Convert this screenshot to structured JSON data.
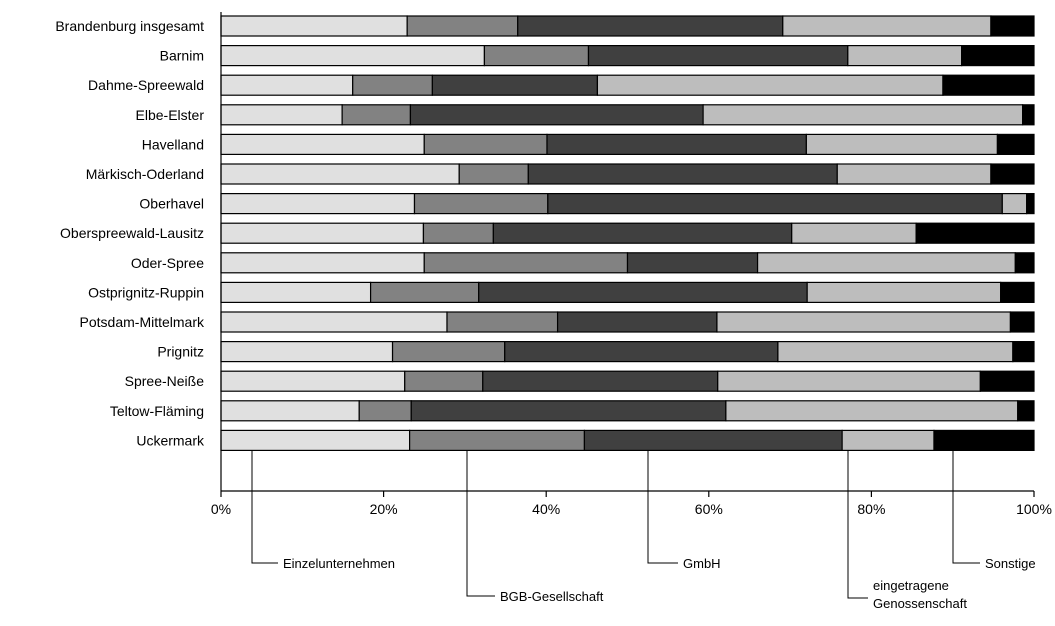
{
  "chart_data": {
    "type": "bar",
    "orientation": "horizontal",
    "stacked": true,
    "percent": true,
    "xlim": [
      0,
      100
    ],
    "xticks": [
      "0%",
      "20%",
      "40%",
      "60%",
      "80%",
      "100%"
    ],
    "grid": false,
    "categories": [
      "Brandenburg insgesamt",
      "Barnim",
      "Dahme-Spreewald",
      "Elbe-Elster",
      "Havelland",
      "Märkisch-Oderland",
      "Oberhavel",
      "Oberspreewald-Lausitz",
      "Oder-Spree",
      "Ostprignitz-Ruppin",
      "Potsdam-Mittelmark",
      "Prignitz",
      "Spree-Neiße",
      "Teltow-Fläming",
      "Uckermark"
    ],
    "series": [
      {
        "name": "Einzelunternehmen",
        "color": "#e0e0e0",
        "values": [
          22.9,
          32.4,
          16.2,
          14.9,
          25.0,
          29.3,
          23.8,
          24.9,
          25.0,
          18.4,
          27.8,
          21.1,
          22.6,
          17.0,
          23.2
        ]
      },
      {
        "name": "BGB-Gesellschaft",
        "color": "#828282",
        "values": [
          13.6,
          12.8,
          9.8,
          8.4,
          15.1,
          8.5,
          16.4,
          8.6,
          25.0,
          13.3,
          13.6,
          13.8,
          9.6,
          6.4,
          21.5
        ]
      },
      {
        "name": "GmbH",
        "color": "#404040",
        "values": [
          32.6,
          31.9,
          20.3,
          36.0,
          31.9,
          38.0,
          55.9,
          36.7,
          16.0,
          40.4,
          19.6,
          33.6,
          28.9,
          38.7,
          31.7
        ]
      },
      {
        "name": "eingetragene Genossenschaft",
        "color": "#bdbdbd",
        "values": [
          25.6,
          14.0,
          42.5,
          39.3,
          23.5,
          18.9,
          3.0,
          15.3,
          31.7,
          23.8,
          36.1,
          28.9,
          32.3,
          35.9,
          11.3
        ]
      },
      {
        "name": "Sonstige",
        "color": "#000000",
        "values": [
          5.3,
          8.9,
          11.2,
          1.4,
          4.5,
          5.3,
          0.9,
          14.5,
          2.3,
          4.1,
          2.9,
          2.6,
          6.6,
          2.0,
          12.3
        ]
      }
    ],
    "legend_placement": "bottom",
    "legend_labels": [
      "Einzelunternehmen",
      "BGB-Gesellschaft",
      "GmbH",
      "eingetragene\nGenossenschaft",
      "Sonstige"
    ]
  }
}
